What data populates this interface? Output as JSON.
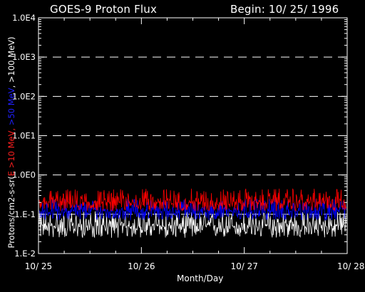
{
  "chart_data": {
    "type": "line",
    "title": "GOES-9 Proton Flux",
    "begin_label": "Begin: 10/ 25/ 1996",
    "xlabel": "Month/Day",
    "x_ticks": [
      "10/ 25",
      "10/ 26",
      "10/ 27",
      "10/ 28"
    ],
    "x_range": [
      "10/ 25",
      "10/ 28"
    ],
    "y_ticks": [
      "1.0E4",
      "1.0E3",
      "1.0E2",
      "1.0E1",
      "1.0E0",
      "1.E-1",
      "1.E-2"
    ],
    "y_tick_values": [
      10000,
      1000,
      100,
      10,
      1,
      0.1,
      0.01
    ],
    "ylim": [
      0.01,
      10000
    ],
    "y_scale": "log",
    "ylabel": {
      "prefix": "Protons/cm2-s-sr(",
      "part_e10": "E >10 MeV",
      "sep1": ", ",
      "part_e50": ">50 MeV",
      "sep2": ", ",
      "part_e100": ">100 MeV",
      "suffix": ")"
    },
    "grid": "dashed horizontal at decades",
    "series": [
      {
        "name": "E >10 MeV",
        "color": "#ff0000",
        "typical_range": [
          0.12,
          0.45
        ],
        "median": 0.2
      },
      {
        "name": ">50 MeV",
        "color": "#0000ff",
        "typical_range": [
          0.07,
          0.25
        ],
        "median": 0.12
      },
      {
        "name": ">100 MeV",
        "color": "#ffffff",
        "typical_range": [
          0.025,
          0.12
        ],
        "median": 0.05
      }
    ]
  },
  "colors": {
    "background": "#000000",
    "axes": "#ffffff",
    "grid": "#ffffff"
  }
}
